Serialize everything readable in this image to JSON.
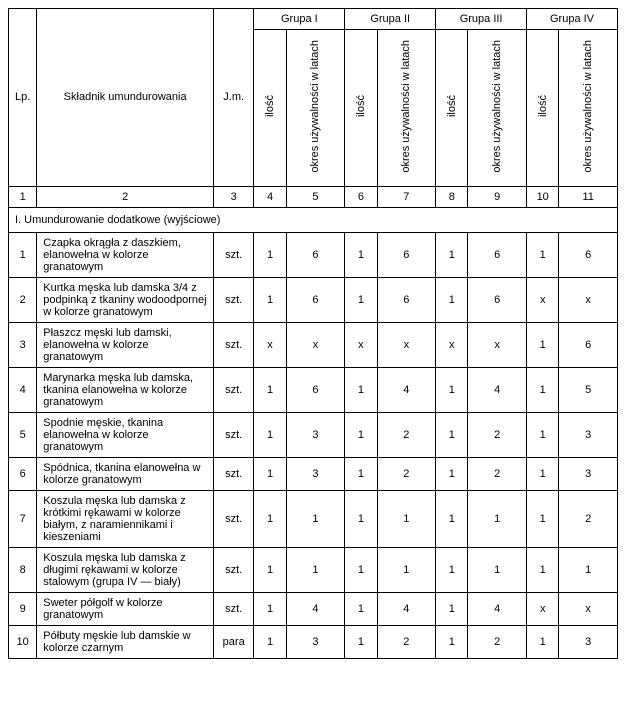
{
  "headers": {
    "lp": "Lp.",
    "skladnik": "Składnik umundurowania",
    "jm": "J.m.",
    "groups": [
      "Grupa I",
      "Grupa II",
      "Grupa III",
      "Grupa IV"
    ],
    "ilosc": "ilość",
    "okres": "okres używalności w latach",
    "colnums": [
      "1",
      "2",
      "3",
      "4",
      "5",
      "6",
      "7",
      "8",
      "9",
      "10",
      "11"
    ]
  },
  "section": "I. Umundurowanie dodatkowe (wyjściowe)",
  "rows": [
    {
      "lp": "1",
      "name": "Czapka okrągła z daszkiem, elanowełna w kolorze granatowym",
      "jm": "szt.",
      "g": [
        [
          "1",
          "6"
        ],
        [
          "1",
          "6"
        ],
        [
          "1",
          "6"
        ],
        [
          "1",
          "6"
        ]
      ]
    },
    {
      "lp": "2",
      "name": "Kurtka męska lub damska 3/4 z podpinką z tkaniny wodoodpornej w kolorze granatowym",
      "jm": "szt.",
      "g": [
        [
          "1",
          "6"
        ],
        [
          "1",
          "6"
        ],
        [
          "1",
          "6"
        ],
        [
          "x",
          "x"
        ]
      ]
    },
    {
      "lp": "3",
      "name": "Płaszcz męski lub damski, elanowełna w kolorze granatowym",
      "jm": "szt.",
      "g": [
        [
          "x",
          "x"
        ],
        [
          "x",
          "x"
        ],
        [
          "x",
          "x"
        ],
        [
          "1",
          "6"
        ]
      ]
    },
    {
      "lp": "4",
      "name": "Marynarka męska lub damska, tkanina elanowełna w kolorze granatowym",
      "jm": "szt.",
      "g": [
        [
          "1",
          "6"
        ],
        [
          "1",
          "4"
        ],
        [
          "1",
          "4"
        ],
        [
          "1",
          "5"
        ]
      ]
    },
    {
      "lp": "5",
      "name": "Spodnie męskie, tkanina elanowełna w kolorze granatowym",
      "jm": "szt.",
      "g": [
        [
          "1",
          "3"
        ],
        [
          "1",
          "2"
        ],
        [
          "1",
          "2"
        ],
        [
          "1",
          "3"
        ]
      ]
    },
    {
      "lp": "6",
      "name": "Spódnica, tkanina elanowełna w kolorze granatowym",
      "jm": "szt.",
      "g": [
        [
          "1",
          "3"
        ],
        [
          "1",
          "2"
        ],
        [
          "1",
          "2"
        ],
        [
          "1",
          "3"
        ]
      ]
    },
    {
      "lp": "7",
      "name": "Koszula męska lub damska z krótkimi rękawami w kolorze białym, z naramiennikami i kieszeniami",
      "jm": "szt.",
      "g": [
        [
          "1",
          "1"
        ],
        [
          "1",
          "1"
        ],
        [
          "1",
          "1"
        ],
        [
          "1",
          "2"
        ]
      ]
    },
    {
      "lp": "8",
      "name": "Koszula męska lub damska z długimi rękawami w kolorze stalowym (grupa IV — biały)",
      "jm": "szt.",
      "g": [
        [
          "1",
          "1"
        ],
        [
          "1",
          "1"
        ],
        [
          "1",
          "1"
        ],
        [
          "1",
          "1"
        ]
      ]
    },
    {
      "lp": "9",
      "name": "Sweter półgolf w kolorze granatowym",
      "jm": "szt.",
      "g": [
        [
          "1",
          "4"
        ],
        [
          "1",
          "4"
        ],
        [
          "1",
          "4"
        ],
        [
          "x",
          "x"
        ]
      ]
    },
    {
      "lp": "10",
      "name": "Półbuty męskie lub damskie w kolorze czarnym",
      "jm": "para",
      "g": [
        [
          "1",
          "3"
        ],
        [
          "1",
          "2"
        ],
        [
          "1",
          "2"
        ],
        [
          "1",
          "3"
        ]
      ]
    }
  ]
}
